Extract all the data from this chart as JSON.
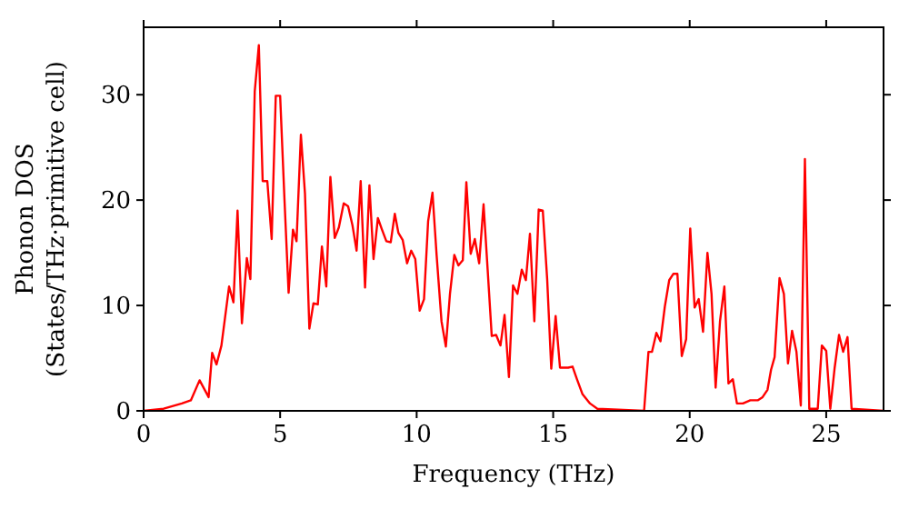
{
  "chart_data": {
    "type": "line",
    "xlabel": "Frequency (THz)",
    "ylabel": "Phonon DOS\n(States/THz·primitive cell)",
    "xlim": [
      0,
      27.1
    ],
    "ylim": [
      0,
      36.4
    ],
    "xticks": [
      0,
      5,
      10,
      15,
      20,
      25
    ],
    "yticks": [
      0,
      10,
      20,
      30
    ],
    "grid": false,
    "marker": "none",
    "line_style": "solid",
    "series": [
      {
        "color": "#ff0000",
        "x": [
          0,
          0.73,
          1.4,
          1.73,
          2.05,
          2.38,
          2.51,
          2.67,
          2.85,
          3.13,
          3.29,
          3.44,
          3.6,
          3.78,
          3.91,
          4.07,
          4.22,
          4.36,
          4.53,
          4.69,
          4.84,
          5.0,
          5.16,
          5.31,
          5.47,
          5.6,
          5.76,
          5.91,
          6.07,
          6.22,
          6.38,
          6.53,
          6.69,
          6.84,
          7.0,
          7.15,
          7.33,
          7.49,
          7.65,
          7.8,
          7.95,
          8.11,
          8.27,
          8.42,
          8.58,
          8.73,
          8.89,
          9.05,
          9.2,
          9.33,
          9.49,
          9.65,
          9.8,
          9.95,
          10.11,
          10.27,
          10.42,
          10.58,
          10.73,
          10.91,
          11.07,
          11.22,
          11.38,
          11.53,
          11.69,
          11.82,
          11.98,
          12.13,
          12.29,
          12.45,
          12.6,
          12.75,
          12.91,
          13.07,
          13.22,
          13.38,
          13.53,
          13.69,
          13.85,
          14.0,
          14.15,
          14.31,
          14.47,
          14.62,
          14.78,
          14.93,
          15.09,
          15.25,
          15.55,
          15.71,
          15.87,
          16.07,
          16.35,
          16.62,
          18.33,
          18.49,
          18.62,
          18.78,
          18.93,
          19.09,
          19.25,
          19.4,
          19.55,
          19.71,
          19.87,
          20.02,
          20.18,
          20.33,
          20.49,
          20.65,
          20.8,
          20.95,
          21.11,
          21.27,
          21.42,
          21.58,
          21.73,
          21.95,
          22.22,
          22.49,
          22.67,
          22.85,
          22.98,
          23.11,
          23.29,
          23.45,
          23.6,
          23.75,
          23.91,
          24.07,
          24.22,
          24.38,
          24.69,
          24.84,
          25.0,
          25.15,
          25.31,
          25.47,
          25.62,
          25.78,
          25.93,
          27.1
        ],
        "values": [
          0,
          0.2,
          0.7,
          1.0,
          2.9,
          1.3,
          5.5,
          4.4,
          6.2,
          11.8,
          10.3,
          19,
          8.3,
          14.5,
          12.5,
          30.3,
          34.7,
          21.8,
          21.8,
          16.3,
          29.9,
          29.9,
          20,
          11.2,
          17.2,
          16.1,
          26.2,
          20.6,
          7.8,
          10.2,
          10.1,
          15.6,
          11.8,
          22.2,
          16.4,
          17.4,
          19.7,
          19.4,
          17.6,
          15.2,
          21.8,
          11.7,
          21.4,
          14.4,
          18.3,
          17.2,
          16.1,
          16.0,
          18.7,
          16.9,
          16.2,
          14.0,
          15.2,
          14.4,
          9.5,
          10.6,
          18.0,
          20.7,
          14.8,
          8.5,
          6.1,
          11.1,
          14.8,
          13.8,
          14.3,
          21.7,
          14.9,
          16.3,
          14.0,
          19.6,
          13.4,
          7.1,
          7.2,
          6.2,
          9.1,
          3.2,
          11.9,
          11.1,
          13.4,
          12.4,
          16.8,
          8.5,
          19.1,
          19.0,
          12.5,
          4.0,
          9.0,
          4.1,
          4.1,
          4.2,
          3.0,
          1.6,
          0.7,
          0.2,
          0,
          5.6,
          5.6,
          7.4,
          6.6,
          9.9,
          12.4,
          13.0,
          13.0,
          5.2,
          6.8,
          17.3,
          9.8,
          10.6,
          7.5,
          15.0,
          11.1,
          2.2,
          8.5,
          11.8,
          2.6,
          3.0,
          0.7,
          0.7,
          1.0,
          1.0,
          1.3,
          2.0,
          3.9,
          5.1,
          12.6,
          11.1,
          4.5,
          7.6,
          5.6,
          0.5,
          23.9,
          0.2,
          0.2,
          6.2,
          5.7,
          0.2,
          4.1,
          7.2,
          5.6,
          7.0,
          0.2,
          0
        ]
      }
    ]
  }
}
